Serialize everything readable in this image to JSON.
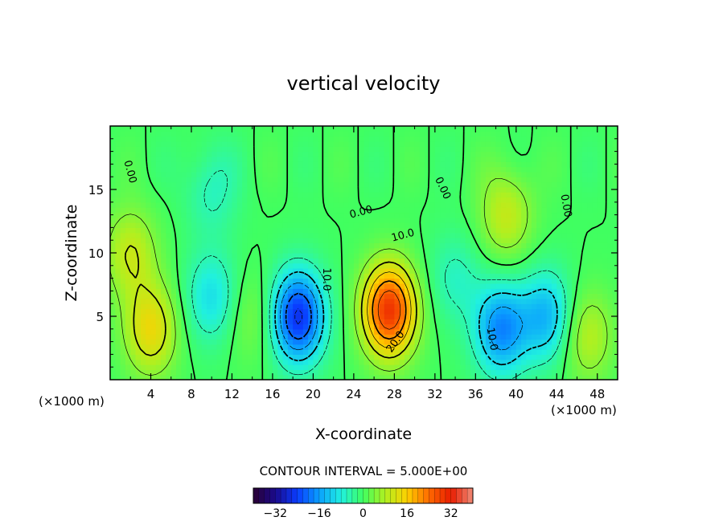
{
  "chart_data": {
    "type": "heatmap",
    "title": "vertical velocity",
    "xlabel": "X-coordinate",
    "ylabel": "Z-coordinate",
    "x_unit": "(×1000 m)",
    "z_unit": "(×1000 m)",
    "xlim": [
      0,
      50
    ],
    "ylim": [
      0,
      20
    ],
    "x_ticks": [
      "4",
      "8",
      "12",
      "16",
      "20",
      "24",
      "28",
      "32",
      "36",
      "40",
      "44",
      "48"
    ],
    "x_tick_values": [
      4,
      8,
      12,
      16,
      20,
      24,
      28,
      32,
      36,
      40,
      44,
      48
    ],
    "y_ticks": [
      "5",
      "10",
      "15"
    ],
    "y_tick_values": [
      5,
      10,
      15
    ],
    "contour_interval_text": "CONTOUR INTERVAL = 5.000E+00",
    "contour_interval": 5,
    "colorbar": {
      "range": [
        -40,
        40
      ],
      "ticks": [
        "−32",
        "−16",
        "0",
        "16",
        "32"
      ],
      "tick_values": [
        -32,
        -16,
        0,
        16,
        32
      ],
      "colormap": [
        "#2a0033",
        "#1a0a8c",
        "#0a3cff",
        "#0aa0ff",
        "#20f0e0",
        "#40ff60",
        "#b0f020",
        "#ffd000",
        "#ff6a00",
        "#e81c00",
        "#f08c78"
      ]
    },
    "contour_labels": [
      "0.00",
      "0.00",
      "0.00",
      "10.0",
      "20.0",
      "10.0",
      "10.0",
      "0.00"
    ],
    "features": [
      {
        "kind": "updraft",
        "x": 27.5,
        "z": 5.5,
        "peak": 30
      },
      {
        "kind": "downdraft",
        "x": 18.5,
        "z": 5.0,
        "peak": -26
      },
      {
        "kind": "downdraft",
        "x": 38.5,
        "z": 4.0,
        "peak": -18
      },
      {
        "kind": "downdraft",
        "x": 43.0,
        "z": 5.0,
        "peak": -14
      },
      {
        "kind": "updraft",
        "x": 4.0,
        "z": 4.0,
        "peak": 14
      },
      {
        "kind": "updraft",
        "x": 47.0,
        "z": 3.5,
        "peak": 9
      },
      {
        "kind": "updraft",
        "x": 39.0,
        "z": 13.0,
        "peak": 10
      },
      {
        "kind": "updraft",
        "x": 2.0,
        "z": 10.0,
        "peak": 10
      },
      {
        "kind": "downdraft",
        "x": 10.0,
        "z": 6.5,
        "peak": -10
      },
      {
        "kind": "downdraft",
        "x": 10.0,
        "z": 15.0,
        "peak": -6
      },
      {
        "kind": "downdraft",
        "x": 34.0,
        "z": 8.0,
        "peak": -6
      },
      {
        "kind": "updraft",
        "x": 14.0,
        "z": 5.0,
        "peak": 5
      }
    ]
  }
}
